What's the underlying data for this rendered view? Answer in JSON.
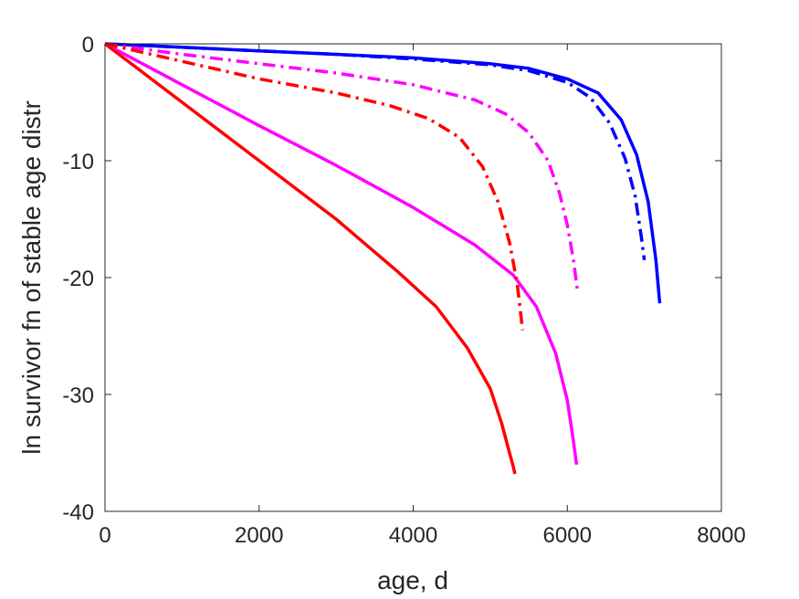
{
  "chart_data": {
    "type": "line",
    "title": "",
    "xlabel": "age, d",
    "ylabel": "ln survivor fn of stable age distr",
    "xlim": [
      0,
      8000
    ],
    "ylim": [
      -40,
      0
    ],
    "xticks": [
      0,
      2000,
      4000,
      6000,
      8000
    ],
    "yticks": [
      0,
      -10,
      -20,
      -30,
      -40
    ],
    "xtick_labels": [
      "0",
      "2000",
      "4000",
      "6000",
      "8000"
    ],
    "ytick_labels": [
      "0",
      "-10",
      "-20",
      "-30",
      "-40"
    ],
    "grid": false,
    "legend": "none",
    "series": [
      {
        "color": "#0000FF",
        "style": "solid",
        "x": [
          0,
          1000,
          2000,
          3000,
          4000,
          5000,
          5500,
          6000,
          6400,
          6700,
          6900,
          7050,
          7150,
          7200
        ],
        "y": [
          0,
          -0.3,
          -0.6,
          -0.9,
          -1.2,
          -1.7,
          -2.1,
          -3.0,
          -4.2,
          -6.5,
          -9.5,
          -13.5,
          -18.5,
          -22.2
        ]
      },
      {
        "color": "#0000FF",
        "style": "dashdot",
        "x": [
          0,
          1000,
          2000,
          3000,
          4000,
          5000,
          5500,
          6000,
          6300,
          6550,
          6750,
          6880,
          6960,
          7000
        ],
        "y": [
          0,
          -0.3,
          -0.6,
          -0.9,
          -1.3,
          -1.8,
          -2.3,
          -3.3,
          -4.6,
          -6.8,
          -9.8,
          -13.0,
          -16.5,
          -18.5
        ]
      },
      {
        "color": "#FF00FF",
        "style": "dashdot",
        "x": [
          0,
          1000,
          2000,
          3000,
          4000,
          4800,
          5200,
          5500,
          5750,
          5900,
          6000,
          6080,
          6130
        ],
        "y": [
          0,
          -0.9,
          -1.7,
          -2.5,
          -3.5,
          -4.8,
          -6.0,
          -7.6,
          -10.0,
          -12.8,
          -15.5,
          -18.5,
          -21.0
        ]
      },
      {
        "color": "#FF00FF",
        "style": "solid",
        "x": [
          0,
          1000,
          2000,
          3000,
          4000,
          4800,
          5300,
          5600,
          5850,
          6000,
          6080,
          6120
        ],
        "y": [
          0,
          -3.5,
          -7.0,
          -10.4,
          -14.0,
          -17.2,
          -19.8,
          -22.5,
          -26.5,
          -30.5,
          -34.0,
          -36.0
        ]
      },
      {
        "color": "#FF0000",
        "style": "dashdot",
        "x": [
          0,
          1000,
          2000,
          3000,
          3700,
          4200,
          4600,
          4900,
          5100,
          5250,
          5350,
          5420
        ],
        "y": [
          0,
          -1.5,
          -3.0,
          -4.2,
          -5.3,
          -6.4,
          -8.0,
          -10.5,
          -13.5,
          -17.0,
          -20.5,
          -24.5
        ]
      },
      {
        "color": "#FF0000",
        "style": "solid",
        "x": [
          0,
          1000,
          2000,
          3000,
          3800,
          4300,
          4700,
          5000,
          5150,
          5250,
          5300,
          5320
        ],
        "y": [
          0,
          -5.0,
          -10.0,
          -15.0,
          -19.5,
          -22.5,
          -26.0,
          -29.5,
          -32.5,
          -35.0,
          -36.2,
          -36.8
        ]
      }
    ]
  }
}
